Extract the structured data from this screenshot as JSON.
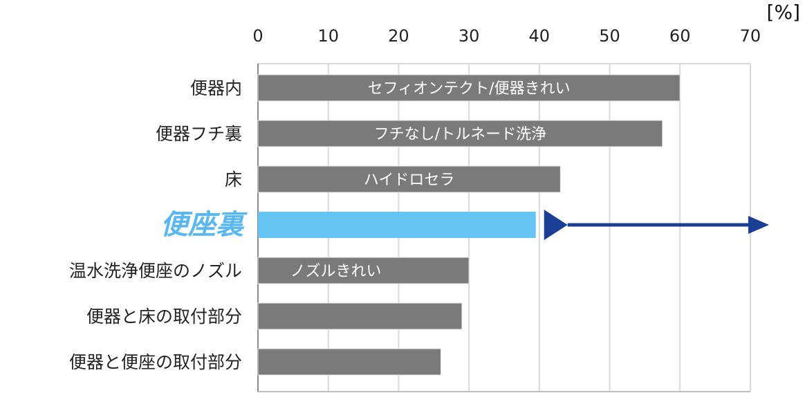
{
  "chart_data": {
    "type": "bar",
    "orientation": "horizontal",
    "unit": "[%]",
    "xlim": [
      0,
      70
    ],
    "xticks": [
      0,
      10,
      20,
      30,
      40,
      50,
      60,
      70
    ],
    "grid": true,
    "categories": [
      "便器内",
      "便器フチ裏",
      "床",
      "便座裏",
      "温水洗浄便座のノズル",
      "便器と床の取付部分",
      "便器と便座の取付部分"
    ],
    "values": [
      60,
      57.5,
      43,
      39.5,
      30,
      29,
      26
    ],
    "bar_labels": [
      "セフィオンテクト/便器きれい",
      "フチなし/トルネード洗浄",
      "ハイドロセラ",
      "",
      "ノズルきれい",
      "",
      ""
    ],
    "highlight_index": 3,
    "colors": {
      "bar": "#7a7a7a",
      "highlight": "#66c4f5",
      "highlight_text": "#5ab8ee",
      "arrow": "#1b3f94",
      "grid": "#d9d9d9"
    }
  }
}
